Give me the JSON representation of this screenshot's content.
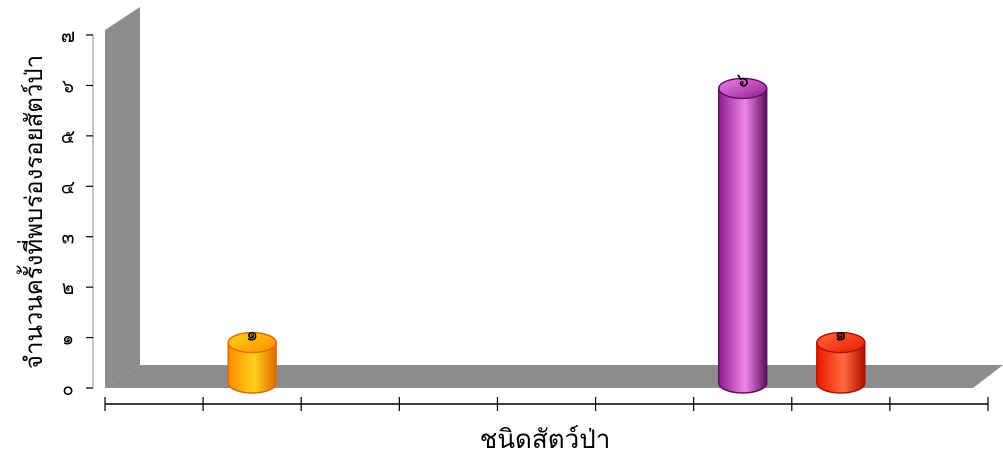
{
  "chart_data": {
    "type": "bar",
    "style": "3d-cylinder",
    "xlabel": "ชนิดสัตว์ป่า",
    "ylabel": "จำนวนครั้งที่พบร่องรอยสัตว์ป่า",
    "ylim": [
      0,
      7
    ],
    "yticks": [
      {
        "value": 0,
        "label": "๐"
      },
      {
        "value": 1,
        "label": "๑"
      },
      {
        "value": 2,
        "label": "๒"
      },
      {
        "value": 3,
        "label": "๓"
      },
      {
        "value": 4,
        "label": "๔"
      },
      {
        "value": 5,
        "label": "๕"
      },
      {
        "value": 6,
        "label": "๖"
      },
      {
        "value": 7,
        "label": "๗"
      }
    ],
    "category_count": 9,
    "bars": [
      {
        "category_index": 1,
        "value": 1,
        "label": "๑",
        "color": "#ff8c00",
        "color_light": "#ffd21a",
        "color_dark": "#e06800"
      },
      {
        "category_index": 6,
        "value": 6,
        "label": "๖",
        "color": "#8e1a8e",
        "color_light": "#f088e8",
        "color_dark": "#5c0c60"
      },
      {
        "category_index": 7,
        "value": 1,
        "label": "๑",
        "color": "#e81800",
        "color_light": "#ff6a40",
        "color_dark": "#b00e00"
      }
    ],
    "grid": false,
    "floor_color": "#8c8c8c",
    "wall_color": "#8c8c8c"
  }
}
